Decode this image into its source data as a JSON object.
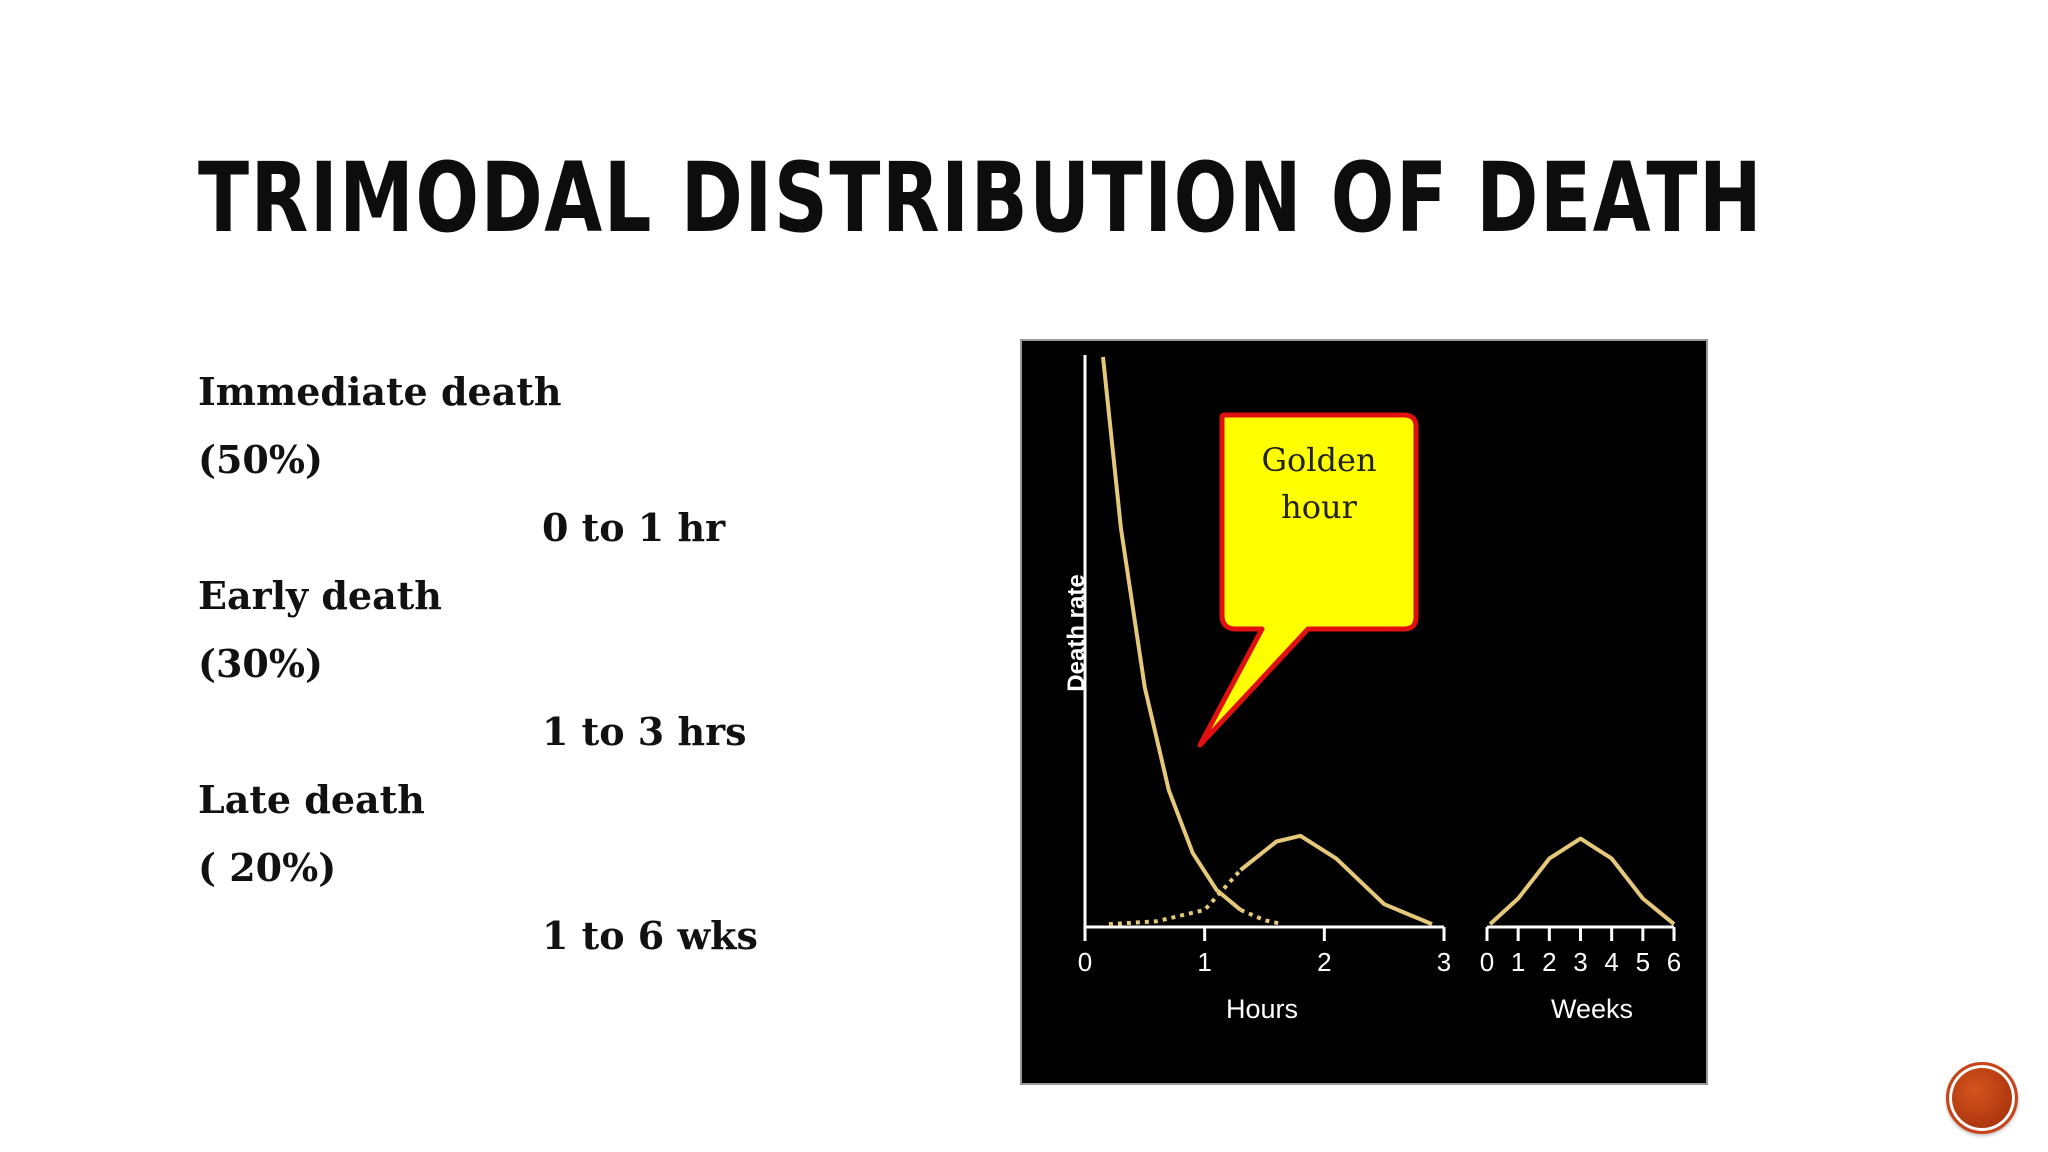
{
  "slide": {
    "title": "Trimodal distribution of death"
  },
  "content": {
    "lines": [
      {
        "text": "Immediate death",
        "indent": false
      },
      {
        "text": "(50%)",
        "indent": false
      },
      {
        "text": "0 to 1 hr",
        "indent": true
      },
      {
        "text": "Early death",
        "indent": false
      },
      {
        "text": "(30%)",
        "indent": false
      },
      {
        "text": "1 to 3 hrs",
        "indent": true
      },
      {
        "text": "Late death",
        "indent": false
      },
      {
        "text": "( 20%)",
        "indent": false
      },
      {
        "text": "1 to 6 wks",
        "indent": true
      }
    ]
  },
  "callout": {
    "text_line1": "Golden",
    "text_line2": "hour",
    "fill": "#ffff00",
    "border": "#e01010"
  },
  "nav": {
    "icon": "next-slide-icon",
    "color": "#c0401a"
  },
  "chart_data": {
    "type": "line",
    "ylabel": "Death rate",
    "panels": [
      {
        "xlabel": "Hours",
        "xlim": [
          0,
          3
        ],
        "xticks": [
          "0",
          "1",
          "2",
          "3"
        ],
        "series": [
          {
            "points": [
              [
                0.15,
                1.0
              ],
              [
                0.3,
                0.7
              ],
              [
                0.5,
                0.42
              ],
              [
                0.7,
                0.24
              ],
              [
                0.9,
                0.13
              ],
              [
                1.1,
                0.065
              ],
              [
                1.3,
                0.03
              ],
              [
                1.5,
                0.012
              ],
              [
                1.65,
                0.005
              ]
            ],
            "style": "solid-then-dotted"
          },
          {
            "points": [
              [
                0.2,
                0.005
              ],
              [
                0.6,
                0.01
              ],
              [
                1.0,
                0.03
              ],
              [
                1.3,
                0.1
              ],
              [
                1.6,
                0.15
              ],
              [
                1.8,
                0.16
              ],
              [
                2.1,
                0.12
              ],
              [
                2.5,
                0.04
              ],
              [
                2.9,
                0.005
              ]
            ],
            "style": "dotted-then-solid"
          }
        ]
      },
      {
        "xlabel": "Weeks",
        "xlim": [
          0,
          6
        ],
        "xticks": [
          "0",
          "1",
          "2",
          "3",
          "4",
          "5",
          "6"
        ],
        "series": [
          {
            "points": [
              [
                0.1,
                0.005
              ],
              [
                1,
                0.05
              ],
              [
                2,
                0.12
              ],
              [
                3,
                0.155
              ],
              [
                4,
                0.12
              ],
              [
                5,
                0.05
              ],
              [
                6,
                0.005
              ]
            ],
            "style": "solid"
          }
        ]
      }
    ],
    "ylim": [
      0,
      1
    ],
    "colors": {
      "curve": "#e5c879",
      "axes": "#ffffff",
      "background": "#000000"
    },
    "grid": false,
    "legend": "none"
  }
}
